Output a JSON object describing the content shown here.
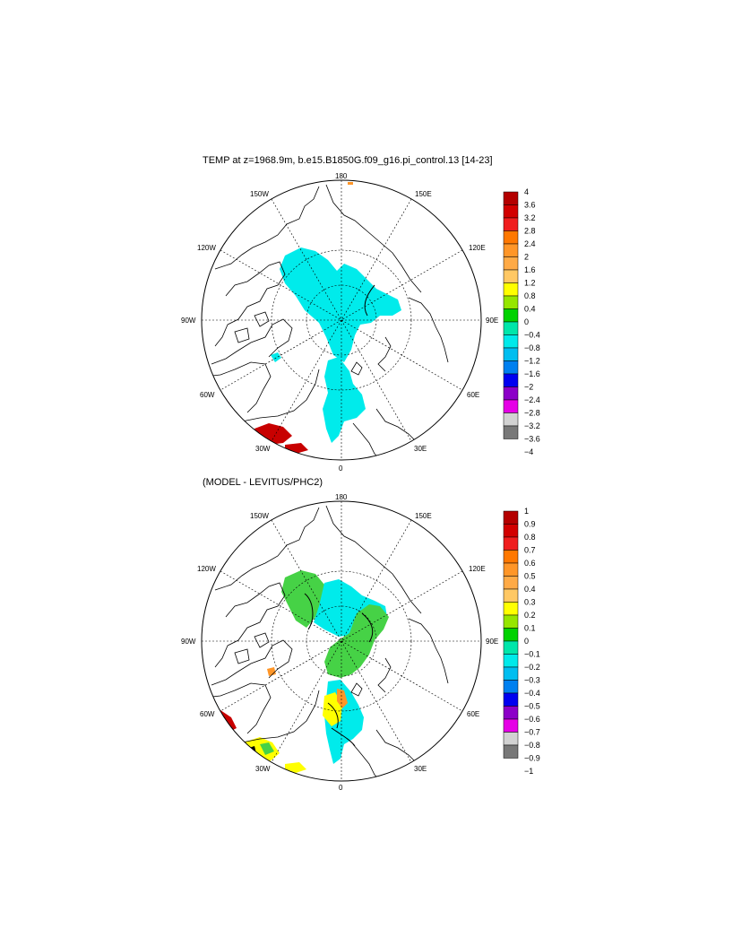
{
  "panels": [
    {
      "id": "top",
      "title": "TEMP at z=1968.9m, b.e15.B1850G.f09_g16.pi_control.13 [14-23]",
      "colorbar": {
        "labels": [
          "4",
          "3.6",
          "3.2",
          "2.8",
          "2.4",
          "2",
          "1.6",
          "1.2",
          "0.8",
          "0.4",
          "0",
          "−0.4",
          "−0.8",
          "−1.2",
          "−1.6",
          "−2",
          "−2.4",
          "−2.8",
          "−3.2",
          "−3.6",
          "−4"
        ]
      }
    },
    {
      "id": "bottom",
      "title": "(MODEL - LEVITUS/PHC2)",
      "colorbar": {
        "labels": [
          "1",
          "0.9",
          "0.8",
          "0.7",
          "0.6",
          "0.5",
          "0.4",
          "0.3",
          "0.2",
          "0.1",
          "0",
          "−0.1",
          "−0.2",
          "−0.3",
          "−0.4",
          "−0.5",
          "−0.6",
          "−0.7",
          "−0.8",
          "−0.9",
          "−1"
        ]
      }
    }
  ],
  "longitude_labels": {
    "lon_180": "180",
    "lon_150w": "150W",
    "lon_150e": "150E",
    "lon_120w": "120W",
    "lon_120e": "120E",
    "lon_90w": "90W",
    "lon_90e": "90E",
    "lon_60w": "60W",
    "lon_60e": "60E",
    "lon_30w": "30W",
    "lon_30e": "30E",
    "lon_0": "0"
  },
  "colorbar_colors": [
    "#b40000",
    "#d20000",
    "#f01e1e",
    "#ff7800",
    "#ff9628",
    "#ffaa46",
    "#ffc864",
    "#ffff00",
    "#96e600",
    "#00d200",
    "#00e6aa",
    "#00eaea",
    "#00bef0",
    "#0080f0",
    "#0000f0",
    "#8c00c8",
    "#e600e6",
    "#d2d2d2",
    "#787878"
  ],
  "colors": {
    "cyan_fill": "#00ebeb",
    "green_fill": "#46d246",
    "teal_fill": "#00e0b0",
    "red_fill": "#c80000",
    "yellow_fill": "#ffff00",
    "orange_fill": "#ff9628"
  }
}
